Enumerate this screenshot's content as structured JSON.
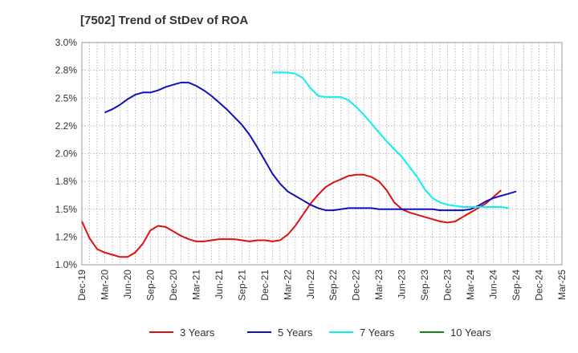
{
  "chart_data": {
    "type": "line",
    "title": "[7502]  Trend of StDev of ROA",
    "xlabel": "",
    "ylabel": "",
    "x_tick_labels": [
      "Dec-19",
      "Mar-20",
      "Jun-20",
      "Sep-20",
      "Dec-20",
      "Mar-21",
      "Jun-21",
      "Sep-21",
      "Dec-21",
      "Mar-22",
      "Jun-22",
      "Sep-22",
      "Dec-22",
      "Mar-23",
      "Jun-23",
      "Sep-23",
      "Dec-23",
      "Mar-24",
      "Jun-24",
      "Sep-24",
      "Dec-24",
      "Mar-25"
    ],
    "y_tick_labels": [
      "3.0%",
      "2.8%",
      "2.5%",
      "2.2%",
      "2.0%",
      "1.8%",
      "1.5%",
      "1.2%",
      "1.0%"
    ],
    "ylim": [
      1.0,
      3.0
    ],
    "grid": true,
    "legend_position": "bottom",
    "series": [
      {
        "name": "3 Years",
        "color": "#dd1111",
        "start_index": 0,
        "values": [
          1.39,
          1.24,
          1.14,
          1.11,
          1.09,
          1.07,
          1.07,
          1.11,
          1.19,
          1.31,
          1.35,
          1.34,
          1.3,
          1.26,
          1.23,
          1.21,
          1.21,
          1.22,
          1.23,
          1.23,
          1.23,
          1.22,
          1.21,
          1.22,
          1.22,
          1.21,
          1.22,
          1.27,
          1.35,
          1.45,
          1.55,
          1.63,
          1.7,
          1.74,
          1.77,
          1.8,
          1.81,
          1.81,
          1.79,
          1.75,
          1.67,
          1.56,
          1.5,
          1.47,
          1.45,
          1.43,
          1.41,
          1.39,
          1.38,
          1.39,
          1.43,
          1.47,
          1.51,
          1.55,
          1.61,
          1.67
        ]
      },
      {
        "name": "5 Years",
        "color": "#1111bb",
        "start_index": 3,
        "values": [
          2.37,
          2.4,
          2.44,
          2.49,
          2.53,
          2.55,
          2.55,
          2.57,
          2.6,
          2.62,
          2.64,
          2.64,
          2.61,
          2.57,
          2.52,
          2.46,
          2.4,
          2.33,
          2.26,
          2.17,
          2.06,
          1.94,
          1.82,
          1.73,
          1.66,
          1.62,
          1.58,
          1.54,
          1.51,
          1.49,
          1.49,
          1.5,
          1.51,
          1.51,
          1.51,
          1.51,
          1.5,
          1.5,
          1.5,
          1.5,
          1.5,
          1.5,
          1.5,
          1.5,
          1.49,
          1.49,
          1.49,
          1.49,
          1.5,
          1.53,
          1.57,
          1.6,
          1.62,
          1.64,
          1.66
        ]
      },
      {
        "name": "7 Years",
        "color": "#11eeee",
        "start_index": 25,
        "values": [
          2.73,
          2.73,
          2.73,
          2.72,
          2.68,
          2.59,
          2.52,
          2.51,
          2.51,
          2.51,
          2.48,
          2.42,
          2.35,
          2.27,
          2.19,
          2.11,
          2.04,
          1.97,
          1.88,
          1.79,
          1.68,
          1.6,
          1.56,
          1.54,
          1.53,
          1.52,
          1.52,
          1.52,
          1.52,
          1.52,
          1.52,
          1.51
        ]
      },
      {
        "name": "10 Years",
        "color": "#118811",
        "start_index": 0,
        "values": []
      }
    ]
  }
}
